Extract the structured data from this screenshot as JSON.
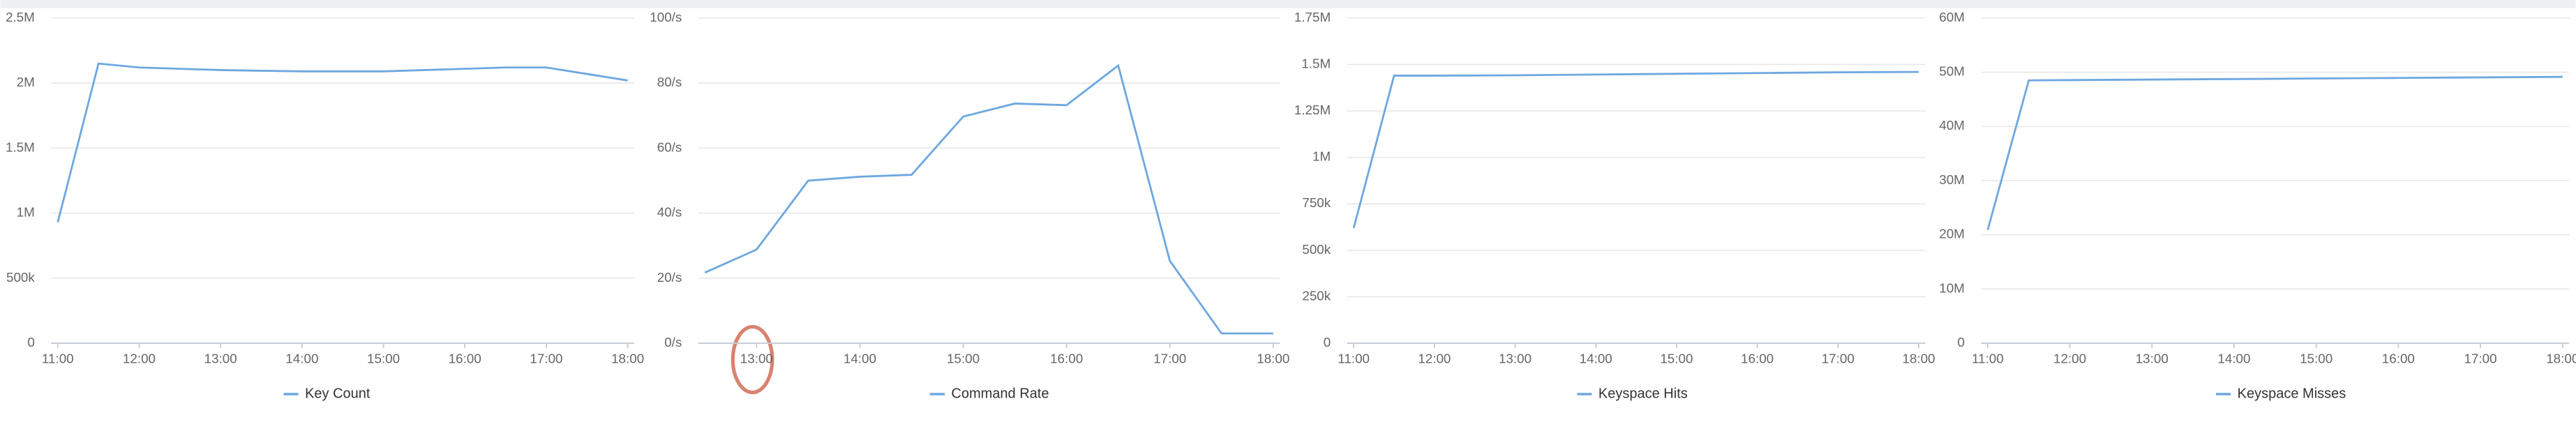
{
  "chart_data": [
    {
      "type": "line",
      "categories": [
        "11:00",
        null,
        "12:00",
        null,
        "13:00",
        null,
        "14:00",
        null,
        "15:00",
        null,
        "16:00",
        null,
        "17:00",
        null,
        "18:00"
      ],
      "series": [
        {
          "name": "Key Count",
          "color": "#6ea8e0",
          "values": [
            930000,
            2150000,
            2120000,
            2110000,
            2100000,
            2095000,
            2090000,
            2090000,
            2090000,
            2100000,
            2110000,
            2120000,
            2120000,
            2070000,
            2020000
          ]
        }
      ],
      "ylim": [
        0,
        2500000
      ],
      "yticks": [
        0,
        {
          "value": 500000,
          "label": "500k"
        },
        {
          "value": 1000000,
          "label": "1M"
        },
        {
          "value": 1500000,
          "label": "1.5M"
        },
        {
          "value": 2000000,
          "label": "2M"
        },
        {
          "value": 2500000,
          "label": "2.5M"
        }
      ],
      "grid": true
    },
    {
      "type": "line",
      "categories": [
        null,
        "13:00",
        null,
        "14:00",
        null,
        "15:00",
        null,
        "16:00",
        null,
        "17:00",
        null,
        "18:00"
      ],
      "series": [
        {
          "name": "Command Rate",
          "color": "#6ea8e0",
          "values": [
            21.7,
            28.8,
            50,
            51.2,
            51.8,
            69.7,
            73.7,
            73.2,
            85.4,
            25.3,
            3,
            3
          ]
        }
      ],
      "ylim": [
        0,
        100
      ],
      "yticks": [
        {
          "value": 0,
          "label": "0/s"
        },
        {
          "value": 20,
          "label": "20/s"
        },
        {
          "value": 40,
          "label": "40/s"
        },
        {
          "value": 60,
          "label": "60/s"
        },
        {
          "value": 80,
          "label": "80/s"
        },
        {
          "value": 100,
          "label": "100/s"
        }
      ],
      "grid": true
    },
    {
      "type": "line",
      "categories": [
        "11:00",
        null,
        "12:00",
        null,
        "13:00",
        null,
        "14:00",
        null,
        "15:00",
        null,
        "16:00",
        null,
        "17:00",
        null,
        "18:00"
      ],
      "series": [
        {
          "name": "Keyspace Hits",
          "color": "#6ea8e0",
          "values": [
            620000,
            1440000,
            1440000,
            1441000,
            1442000,
            1444000,
            1446000,
            1448000,
            1450000,
            1452000,
            1454000,
            1456000,
            1458000,
            1459000,
            1460000
          ]
        }
      ],
      "ylim": [
        0,
        1750000
      ],
      "yticks": [
        0,
        {
          "value": 250000,
          "label": "250k"
        },
        {
          "value": 500000,
          "label": "500k"
        },
        {
          "value": 750000,
          "label": "750k"
        },
        {
          "value": 1000000,
          "label": "1M"
        },
        {
          "value": 1250000,
          "label": "1.25M"
        },
        {
          "value": 1500000,
          "label": "1.5M"
        },
        {
          "value": 1750000,
          "label": "1.75M"
        }
      ],
      "grid": true
    },
    {
      "type": "line",
      "categories": [
        "11:00",
        null,
        "12:00",
        null,
        "13:00",
        null,
        "14:00",
        null,
        "15:00",
        null,
        "16:00",
        null,
        "17:00",
        null,
        "18:00"
      ],
      "series": [
        {
          "name": "Keyspace Misses",
          "color": "#6ea8e0",
          "values": [
            20900000,
            48500000,
            48550000,
            48600000,
            48650000,
            48700000,
            48750000,
            48800000,
            48850000,
            48900000,
            48950000,
            49000000,
            49050000,
            49100000,
            49150000
          ]
        }
      ],
      "ylim": [
        0,
        60000000
      ],
      "yticks": [
        0,
        {
          "value": 10000000,
          "label": "10M"
        },
        {
          "value": 20000000,
          "label": "20M"
        },
        {
          "value": 30000000,
          "label": "30M"
        },
        {
          "value": 40000000,
          "label": "40M"
        },
        {
          "value": 50000000,
          "label": "50M"
        },
        {
          "value": 60000000,
          "label": "60M"
        }
      ],
      "grid": true
    }
  ]
}
